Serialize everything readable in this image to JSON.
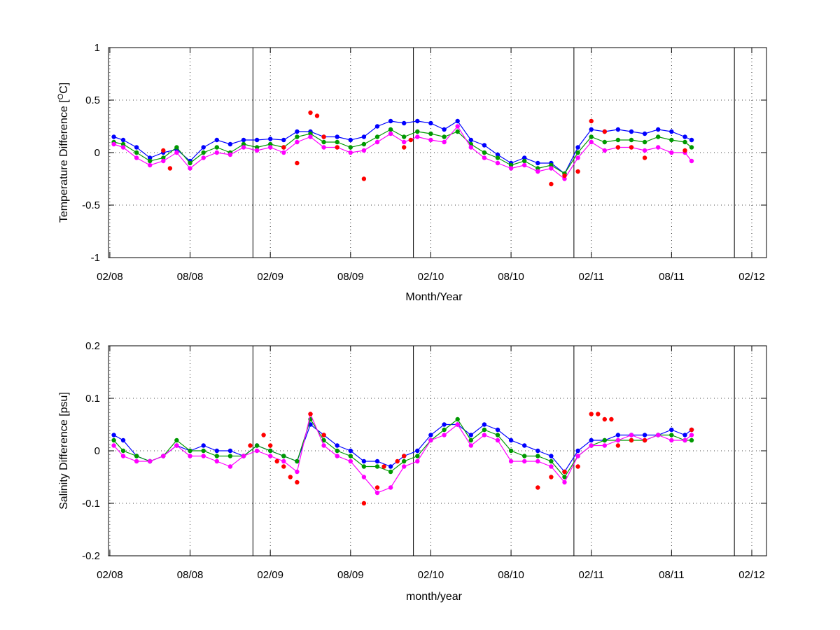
{
  "chart_data": [
    {
      "type": "line",
      "title": "",
      "xlabel": "Month/Year",
      "ylabel": "Temperature Difference [",
      "ylabel_super": "O",
      "ylabel_tail": "C]",
      "x_tick_labels": [
        "02/08",
        "08/08",
        "02/09",
        "08/09",
        "02/10",
        "08/10",
        "02/11",
        "08/11",
        "02/12"
      ],
      "x_tick_months": [
        0,
        6,
        12,
        18,
        24,
        30,
        36,
        42,
        48
      ],
      "xlim_months": [
        -0.1,
        49.1
      ],
      "ylim": [
        -1,
        1
      ],
      "y_ticks": [
        -1,
        -0.5,
        0,
        0.5,
        1
      ],
      "y_tick_labels": [
        "-1",
        "-0.5",
        "0",
        "0.5",
        "1"
      ],
      "vertical_lines_months": [
        10.7,
        22.7,
        34.7,
        46.7
      ],
      "grid": "dotted",
      "series": [
        {
          "marker": "dot",
          "color": "#0000ff",
          "linestyle": "solid",
          "x": [
            0.3,
            1,
            2,
            3,
            4,
            5,
            6,
            7,
            8,
            9,
            10,
            11,
            12,
            13,
            14,
            15,
            16,
            17,
            18,
            19,
            20,
            21,
            22,
            23,
            24,
            25,
            26,
            27,
            28,
            29,
            30,
            31,
            32,
            33,
            34,
            35,
            36,
            37,
            38,
            39,
            40,
            41,
            42,
            43,
            43.5
          ],
          "y": [
            0.15,
            0.12,
            0.05,
            -0.05,
            0.0,
            0.03,
            -0.08,
            0.05,
            0.12,
            0.08,
            0.12,
            0.12,
            0.13,
            0.12,
            0.2,
            0.2,
            0.15,
            0.15,
            0.12,
            0.15,
            0.25,
            0.3,
            0.28,
            0.3,
            0.28,
            0.22,
            0.3,
            0.12,
            0.07,
            -0.02,
            -0.1,
            -0.05,
            -0.1,
            -0.1,
            -0.2,
            0.05,
            0.22,
            0.2,
            0.22,
            0.2,
            0.18,
            0.22,
            0.2,
            0.15,
            0.12
          ]
        },
        {
          "marker": "dot",
          "color": "#009900",
          "linestyle": "solid",
          "x": [
            0.3,
            1,
            2,
            3,
            4,
            5,
            6,
            7,
            8,
            9,
            10,
            11,
            12,
            13,
            14,
            15,
            16,
            17,
            18,
            19,
            20,
            21,
            22,
            23,
            24,
            25,
            26,
            27,
            28,
            29,
            30,
            31,
            32,
            33,
            34,
            35,
            36,
            37,
            38,
            39,
            40,
            41,
            42,
            43,
            43.5
          ],
          "y": [
            0.1,
            0.08,
            0.0,
            -0.08,
            -0.05,
            0.05,
            -0.1,
            0.0,
            0.05,
            0.0,
            0.08,
            0.05,
            0.08,
            0.05,
            0.15,
            0.18,
            0.1,
            0.1,
            0.05,
            0.08,
            0.15,
            0.22,
            0.15,
            0.2,
            0.18,
            0.15,
            0.2,
            0.08,
            0.0,
            -0.05,
            -0.12,
            -0.08,
            -0.15,
            -0.12,
            -0.2,
            0.0,
            0.15,
            0.1,
            0.12,
            0.12,
            0.1,
            0.15,
            0.12,
            0.1,
            0.05
          ]
        },
        {
          "marker": "dot",
          "color": "#ff00ff",
          "linestyle": "solid",
          "x": [
            0.3,
            1,
            2,
            3,
            4,
            5,
            6,
            7,
            8,
            9,
            10,
            11,
            12,
            13,
            14,
            15,
            16,
            17,
            18,
            19,
            20,
            21,
            22,
            23,
            24,
            25,
            26,
            27,
            28,
            29,
            30,
            31,
            32,
            33,
            34,
            35,
            36,
            37,
            38,
            39,
            40,
            41,
            42,
            43,
            43.5
          ],
          "y": [
            0.08,
            0.05,
            -0.05,
            -0.12,
            -0.08,
            0.0,
            -0.15,
            -0.05,
            0.0,
            -0.02,
            0.05,
            0.02,
            0.05,
            0.0,
            0.1,
            0.15,
            0.05,
            0.05,
            0.0,
            0.02,
            0.1,
            0.18,
            0.1,
            0.15,
            0.12,
            0.1,
            0.25,
            0.05,
            -0.05,
            -0.1,
            -0.15,
            -0.12,
            -0.18,
            -0.15,
            -0.25,
            -0.05,
            0.1,
            0.02,
            0.05,
            0.05,
            0.02,
            0.05,
            0.0,
            0.0,
            -0.08
          ]
        },
        {
          "marker": "dot",
          "color": "#ff0000",
          "linestyle": "none",
          "x": [
            4,
            4.5,
            13,
            14,
            15,
            15.5,
            16,
            17,
            19,
            22,
            22.5,
            33,
            34,
            35,
            36,
            37,
            38,
            39,
            40,
            43
          ],
          "y": [
            0.02,
            -0.15,
            0.05,
            -0.1,
            0.38,
            0.35,
            0.15,
            0.05,
            -0.25,
            0.05,
            0.12,
            -0.3,
            -0.22,
            -0.18,
            0.3,
            0.2,
            0.05,
            0.05,
            -0.05,
            0.02
          ]
        }
      ]
    },
    {
      "type": "line",
      "title": "",
      "xlabel": "month/year",
      "ylabel": "Salinity Difference [psu]",
      "x_tick_labels": [
        "02/08",
        "08/08",
        "02/09",
        "08/09",
        "02/10",
        "08/10",
        "02/11",
        "08/11",
        "02/12"
      ],
      "x_tick_months": [
        0,
        6,
        12,
        18,
        24,
        30,
        36,
        42,
        48
      ],
      "xlim_months": [
        -0.1,
        49.1
      ],
      "ylim": [
        -0.2,
        0.2
      ],
      "y_ticks": [
        -0.2,
        -0.1,
        0,
        0.1,
        0.2
      ],
      "y_tick_labels": [
        "-0.2",
        "-0.1",
        "0",
        "0.1",
        "0.2"
      ],
      "vertical_lines_months": [
        10.7,
        22.7,
        34.7,
        46.7
      ],
      "grid": "dotted",
      "series": [
        {
          "marker": "dot",
          "color": "#0000ff",
          "linestyle": "solid",
          "x": [
            0.3,
            1,
            2,
            3,
            4,
            5,
            6,
            7,
            8,
            9,
            10,
            11,
            12,
            13,
            14,
            15,
            16,
            17,
            18,
            19,
            20,
            21,
            22,
            23,
            24,
            25,
            26,
            27,
            28,
            29,
            30,
            31,
            32,
            33,
            34,
            35,
            36,
            37,
            38,
            39,
            40,
            41,
            42,
            43,
            43.5
          ],
          "y": [
            0.03,
            0.02,
            -0.01,
            -0.02,
            -0.01,
            0.01,
            0.0,
            0.01,
            0.0,
            0.0,
            -0.01,
            0.01,
            0.0,
            -0.01,
            -0.02,
            0.05,
            0.03,
            0.01,
            0.0,
            -0.02,
            -0.02,
            -0.03,
            -0.01,
            0.0,
            0.03,
            0.05,
            0.05,
            0.03,
            0.05,
            0.04,
            0.02,
            0.01,
            0.0,
            -0.01,
            -0.04,
            0.0,
            0.02,
            0.02,
            0.03,
            0.03,
            0.03,
            0.03,
            0.04,
            0.03,
            0.04
          ]
        },
        {
          "marker": "dot",
          "color": "#009900",
          "linestyle": "solid",
          "x": [
            0.3,
            1,
            2,
            3,
            4,
            5,
            6,
            7,
            8,
            9,
            10,
            11,
            12,
            13,
            14,
            15,
            16,
            17,
            18,
            19,
            20,
            21,
            22,
            23,
            24,
            25,
            26,
            27,
            28,
            29,
            30,
            31,
            32,
            33,
            34,
            35,
            36,
            37,
            38,
            39,
            40,
            41,
            42,
            43,
            43.5
          ],
          "y": [
            0.02,
            0.0,
            -0.01,
            -0.02,
            -0.01,
            0.02,
            0.0,
            0.0,
            -0.01,
            -0.01,
            -0.01,
            0.01,
            0.0,
            -0.01,
            -0.02,
            0.06,
            0.02,
            0.0,
            -0.01,
            -0.03,
            -0.03,
            -0.04,
            -0.02,
            -0.01,
            0.02,
            0.04,
            0.06,
            0.02,
            0.04,
            0.03,
            0.0,
            -0.01,
            -0.01,
            -0.02,
            -0.05,
            -0.01,
            0.01,
            0.02,
            0.02,
            0.02,
            0.02,
            0.03,
            0.03,
            0.02,
            0.02
          ]
        },
        {
          "marker": "dot",
          "color": "#ff00ff",
          "linestyle": "solid",
          "x": [
            0.3,
            1,
            2,
            3,
            4,
            5,
            6,
            7,
            8,
            9,
            10,
            11,
            12,
            13,
            14,
            15,
            16,
            17,
            18,
            19,
            20,
            21,
            22,
            23,
            24,
            25,
            26,
            27,
            28,
            29,
            30,
            31,
            32,
            33,
            34,
            35,
            36,
            37,
            38,
            39,
            40,
            41,
            42,
            43,
            43.5
          ],
          "y": [
            0.01,
            -0.01,
            -0.02,
            -0.02,
            -0.01,
            0.01,
            -0.01,
            -0.01,
            -0.02,
            -0.03,
            -0.01,
            0.0,
            -0.01,
            -0.02,
            -0.04,
            0.07,
            0.01,
            -0.01,
            -0.02,
            -0.05,
            -0.08,
            -0.07,
            -0.03,
            -0.02,
            0.02,
            0.03,
            0.05,
            0.01,
            0.03,
            0.02,
            -0.02,
            -0.02,
            -0.02,
            -0.03,
            -0.06,
            -0.01,
            0.01,
            0.01,
            0.02,
            0.03,
            0.02,
            0.03,
            0.02,
            0.02,
            0.03
          ]
        },
        {
          "marker": "dot",
          "color": "#ff0000",
          "linestyle": "none",
          "x": [
            10.5,
            11.5,
            12,
            12.5,
            13,
            13.5,
            14,
            15,
            16,
            19,
            20,
            20.5,
            21.5,
            22,
            32,
            33,
            34,
            35,
            36,
            36.5,
            37,
            37.5,
            38,
            39,
            40,
            43.5
          ],
          "y": [
            0.01,
            0.03,
            0.01,
            -0.02,
            -0.03,
            -0.05,
            -0.06,
            0.07,
            0.03,
            -0.1,
            -0.07,
            -0.03,
            -0.02,
            -0.01,
            -0.07,
            -0.05,
            -0.04,
            -0.03,
            0.07,
            0.07,
            0.06,
            0.06,
            0.01,
            0.02,
            0.02,
            0.04
          ]
        }
      ]
    }
  ]
}
